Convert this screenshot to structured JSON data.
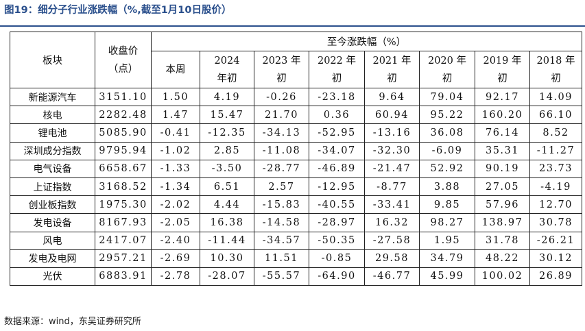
{
  "title": "图19：细分子行业涨跌幅（%,截至1月10日股价）",
  "table": {
    "header_sector": "板块",
    "header_close_line1": "收盘价",
    "header_close_line2": "（点）",
    "header_group": "至今涨跌幅（%）",
    "periods": [
      {
        "line1": "本周",
        "line2": ""
      },
      {
        "line1": "2024",
        "line2": "年初"
      },
      {
        "line1": "2023 年",
        "line2": "初"
      },
      {
        "line1": "2022 年",
        "line2": "初"
      },
      {
        "line1": "2021 年",
        "line2": "初"
      },
      {
        "line1": "2020 年",
        "line2": "初"
      },
      {
        "line1": "2019 年",
        "line2": "初"
      },
      {
        "line1": "2018 年",
        "line2": "初"
      }
    ],
    "rows": [
      {
        "name": "新能源汽车",
        "close": "3151.10",
        "values": [
          "1.50",
          "4.19",
          "-0.26",
          "-23.18",
          "9.64",
          "79.04",
          "92.17",
          "14.09"
        ]
      },
      {
        "name": "核电",
        "close": "2282.48",
        "values": [
          "1.47",
          "15.47",
          "21.70",
          "0.36",
          "60.94",
          "95.22",
          "160.20",
          "66.10"
        ]
      },
      {
        "name": "锂电池",
        "close": "5085.90",
        "values": [
          "-0.41",
          "-12.35",
          "-34.13",
          "-52.95",
          "-13.16",
          "36.08",
          "76.14",
          "8.52"
        ]
      },
      {
        "name": "深圳成分指数",
        "close": "9795.94",
        "values": [
          "-1.02",
          "2.85",
          "-11.08",
          "-34.07",
          "-32.30",
          "-6.09",
          "35.31",
          "-11.27"
        ]
      },
      {
        "name": "电气设备",
        "close": "6658.67",
        "values": [
          "-1.33",
          "-3.50",
          "-28.77",
          "-46.89",
          "-21.47",
          "52.92",
          "90.19",
          "23.73"
        ]
      },
      {
        "name": "上证指数",
        "close": "3168.52",
        "values": [
          "-1.34",
          "6.51",
          "2.57",
          "-12.95",
          "-8.77",
          "3.88",
          "27.05",
          "-4.19"
        ]
      },
      {
        "name": "创业板指数",
        "close": "1975.30",
        "values": [
          "-2.02",
          "4.44",
          "-15.83",
          "-40.55",
          "-33.41",
          "9.85",
          "57.96",
          "12.70"
        ]
      },
      {
        "name": "发电设备",
        "close": "8167.93",
        "values": [
          "-2.05",
          "16.38",
          "-14.58",
          "-28.97",
          "16.32",
          "98.27",
          "138.97",
          "30.78"
        ]
      },
      {
        "name": "风电",
        "close": "2417.07",
        "values": [
          "-2.40",
          "-11.44",
          "-34.57",
          "-50.35",
          "-27.58",
          "1.95",
          "31.78",
          "-26.21"
        ]
      },
      {
        "name": "发电及电网",
        "close": "2957.21",
        "values": [
          "-2.69",
          "10.30",
          "11.51",
          "-0.85",
          "29.58",
          "34.79",
          "48.22",
          "30.12"
        ]
      },
      {
        "name": "光伏",
        "close": "6883.91",
        "values": [
          "-2.78",
          "-28.07",
          "-55.57",
          "-64.90",
          "-46.77",
          "45.99",
          "100.02",
          "26.89"
        ]
      }
    ]
  },
  "footnote": "数据来源：wind，东吴证券研究所"
}
